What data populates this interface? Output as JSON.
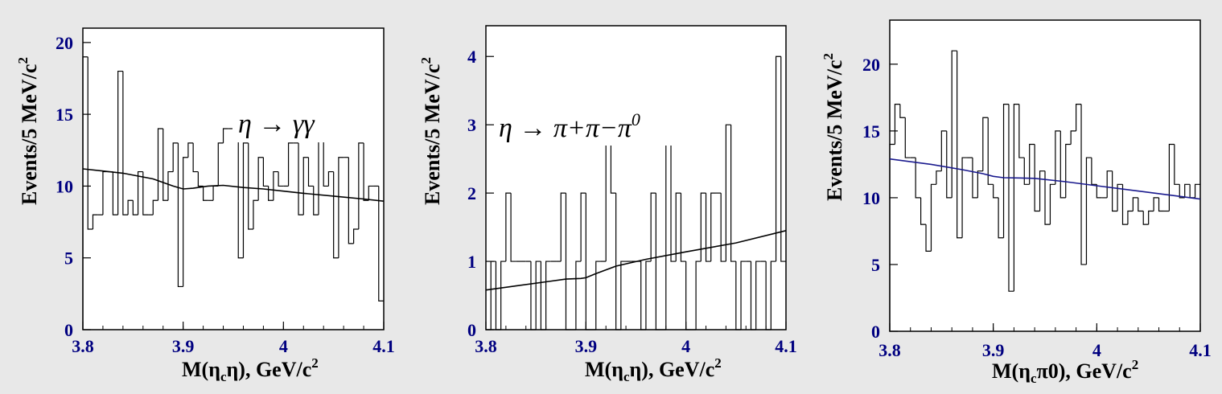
{
  "chart_data": [
    {
      "type": "histogram",
      "xlabel_main": "M(η",
      "xlabel_sub": "c",
      "xlabel_rest": "η), GeV/c",
      "xlabel_sup": "2",
      "ylabel_main": "Events/5 MeV/c",
      "ylabel_sup": "2",
      "xlim": [
        3.8,
        4.1
      ],
      "ylim": [
        0,
        21
      ],
      "xticks": [
        "3.8",
        "3.9",
        "4",
        "4.1"
      ],
      "yticks": [
        "0",
        "5",
        "10",
        "15",
        "20"
      ],
      "bin_width": 0.005,
      "bin_start": 3.8,
      "histogram_values": [
        19,
        7,
        8,
        8,
        11,
        11,
        8,
        18,
        8,
        9,
        8,
        11,
        8,
        8,
        9,
        14,
        9,
        11,
        13,
        3,
        12,
        13,
        11,
        10,
        9,
        9,
        10,
        13,
        14,
        14,
        14,
        5,
        13,
        7,
        9,
        12,
        10,
        9,
        11,
        10,
        10,
        13,
        13,
        8,
        12,
        10,
        8,
        14,
        10,
        11,
        5,
        12,
        12,
        6,
        7,
        13,
        9,
        10,
        10,
        2
      ],
      "fit_curve": {
        "x": [
          3.8,
          3.84,
          3.87,
          3.89,
          3.9,
          3.91,
          3.925,
          3.94,
          3.96,
          3.98,
          4.0,
          4.02,
          4.05,
          4.08,
          4.1
        ],
        "y": [
          11.2,
          10.9,
          10.5,
          10.0,
          9.8,
          9.85,
          10.0,
          10.05,
          9.9,
          9.8,
          9.65,
          9.5,
          9.3,
          9.1,
          8.95
        ]
      },
      "fit_color": "#000000",
      "legend_pre": "η → ",
      "legend_main": "γγ",
      "legend_sup": ""
    },
    {
      "type": "histogram",
      "xlabel_main": "M(η",
      "xlabel_sub": "c",
      "xlabel_rest": "η), GeV/c",
      "xlabel_sup": "2",
      "ylabel_main": "Events/5 MeV/c",
      "ylabel_sup": "2",
      "xlim": [
        3.8,
        4.1
      ],
      "ylim": [
        0,
        4.45
      ],
      "xticks": [
        "3.8",
        "3.9",
        "4",
        "4.1"
      ],
      "yticks": [
        "0",
        "1",
        "2",
        "3",
        "4"
      ],
      "bin_width": 0.005,
      "bin_start": 3.8,
      "histogram_values": [
        0,
        1,
        0,
        1,
        2,
        1,
        1,
        1,
        1,
        0,
        1,
        0,
        1,
        1,
        1,
        2,
        0,
        0,
        1,
        2,
        0,
        0,
        1,
        1,
        3,
        2,
        0,
        1,
        1,
        1,
        1,
        0,
        1,
        2,
        0,
        0,
        3,
        1,
        2,
        1,
        0,
        0,
        1,
        2,
        1,
        2,
        2,
        1,
        3,
        1,
        0,
        1,
        1,
        0,
        1,
        1,
        0,
        1,
        4,
        1
      ],
      "fit_curve": {
        "x": [
          3.8,
          3.83,
          3.86,
          3.88,
          3.895,
          3.9,
          3.91,
          3.93,
          3.96,
          4.0,
          4.05,
          4.1
        ],
        "y": [
          0.58,
          0.64,
          0.7,
          0.74,
          0.75,
          0.76,
          0.82,
          0.93,
          1.03,
          1.14,
          1.27,
          1.45
        ]
      },
      "fit_color": "#000000",
      "legend_pre": "η → ",
      "legend_main": "π+π−π",
      "legend_sup": "0"
    },
    {
      "type": "histogram",
      "xlabel_main": "M(η",
      "xlabel_sub": "c",
      "xlabel_rest": "π0), GeV/c",
      "xlabel_sup": "2",
      "ylabel_main": "Events/5 MeV/c",
      "ylabel_sup": "2",
      "xlim": [
        3.8,
        4.1
      ],
      "ylim": [
        0,
        23.3
      ],
      "xticks": [
        "3.8",
        "3.9",
        "4",
        "4.1"
      ],
      "yticks": [
        "0",
        "5",
        "10",
        "15",
        "20"
      ],
      "bin_width": 0.005,
      "bin_start": 3.8,
      "histogram_values": [
        14,
        17,
        16,
        13,
        13,
        10,
        8,
        6,
        11,
        12,
        15,
        10,
        21,
        7,
        13,
        13,
        10,
        12,
        16,
        11,
        10,
        7,
        17,
        3,
        17,
        13,
        11,
        14,
        9,
        12,
        8,
        11,
        15,
        10,
        14,
        15,
        17,
        5,
        13,
        11,
        10,
        10,
        12,
        9,
        11,
        8,
        9,
        10,
        9,
        8,
        9,
        10,
        9,
        9,
        14,
        11,
        10,
        11,
        10,
        11
      ],
      "fit_curve": {
        "x": [
          3.8,
          3.84,
          3.87,
          3.89,
          3.9,
          3.91,
          3.94,
          3.97,
          4.0,
          4.04,
          4.08,
          4.1
        ],
        "y": [
          12.9,
          12.5,
          12.1,
          11.8,
          11.6,
          11.5,
          11.45,
          11.2,
          10.9,
          10.5,
          10.1,
          9.9
        ]
      },
      "fit_color": "#1a1a8e",
      "legend_pre": "",
      "legend_main": "",
      "legend_sup": ""
    }
  ]
}
